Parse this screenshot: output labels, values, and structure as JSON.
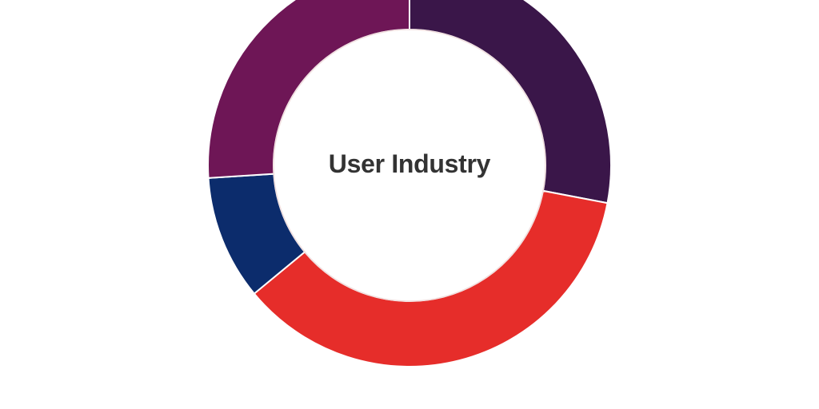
{
  "chart_data": {
    "type": "pie",
    "variant": "donut",
    "title": "User Industry",
    "slices": [
      {
        "value": 28,
        "color": "#3a1649"
      },
      {
        "value": 36,
        "color": "#e62d2a"
      },
      {
        "value": 10,
        "color": "#0c2c6c"
      },
      {
        "value": 26,
        "color": "#6e1656"
      }
    ],
    "start_angle_deg": 0,
    "direction": "clockwise"
  }
}
